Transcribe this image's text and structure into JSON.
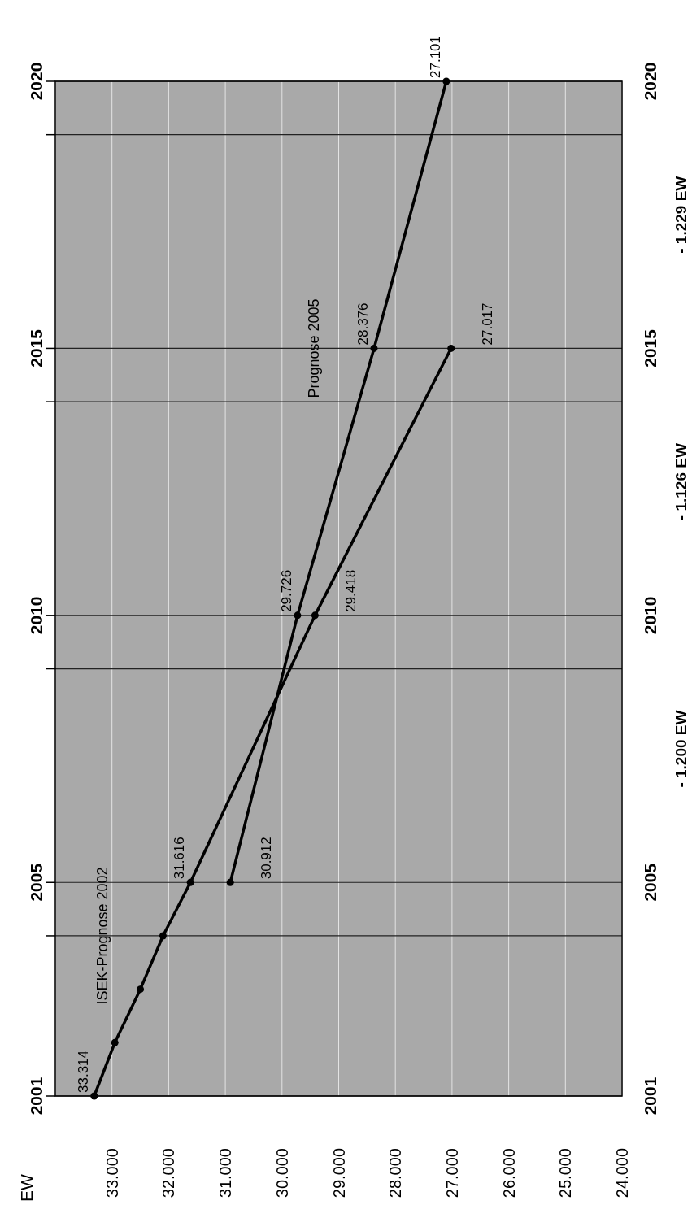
{
  "chart_data": {
    "type": "line",
    "xlim": [
      34,
      24
    ],
    "xticks": [
      {
        "value": 34,
        "label": null
      },
      {
        "value": 33,
        "label": "33.000"
      },
      {
        "value": 32,
        "label": "32.000"
      },
      {
        "value": 31,
        "label": "31.000"
      },
      {
        "value": 30,
        "label": "30.000"
      },
      {
        "value": 29,
        "label": "29.000"
      },
      {
        "value": 28,
        "label": "28.000"
      },
      {
        "value": 27,
        "label": "27.000"
      },
      {
        "value": 26,
        "label": "26.000"
      },
      {
        "value": 25,
        "label": "25.000"
      },
      {
        "value": 24,
        "label": "24.000"
      }
    ],
    "ylim": [
      2001,
      2020
    ],
    "yticks": [
      2001,
      {
        "value": 2004,
        "label": null
      },
      2005,
      {
        "value": 2009,
        "label": null
      },
      2010,
      {
        "value": 2014,
        "label": null
      },
      2015,
      {
        "value": 2019,
        "label": null
      },
      2020
    ],
    "y2lim": [
      2001,
      2020
    ],
    "y2ticks": [
      2001,
      2005,
      2010,
      2015,
      2020
    ],
    "grid": true,
    "marker": "circle",
    "line_style": "solid",
    "series": [
      {
        "name": "ISEK-Prognose 2002",
        "color": "#000000",
        "x": [
          33.314,
          32.95,
          32.5,
          32.1,
          31.616,
          29.418,
          27.017
        ],
        "values": [
          2001,
          2002,
          2003,
          2004,
          2005,
          2010,
          2015
        ]
      },
      {
        "name": "Prognose 2005",
        "color": "#000000",
        "x": [
          30.912,
          29.726,
          28.376,
          27.101
        ],
        "values": [
          2005,
          2010,
          2015,
          2020
        ]
      }
    ],
    "annotations": [
      {
        "text": "33.314",
        "x": 33.314,
        "y": 2001
      },
      {
        "text": "31.616",
        "x": 31.616,
        "y": 2005
      },
      {
        "text": "29.418",
        "x": 29.418,
        "y": 2010
      },
      {
        "text": "27.017",
        "x": 27.017,
        "y": 2015
      },
      {
        "text": "30.912",
        "x": 30.912,
        "y": 2005
      },
      {
        "text": "29.726",
        "x": 29.726,
        "y": 2010
      },
      {
        "text": "28.376",
        "x": 28.376,
        "y": 2015
      },
      {
        "text": "27.101",
        "x": 27.101,
        "y": 2020
      },
      "EW",
      "- 1.200 EW",
      "- 1.126 EW",
      "- 1.229 EW"
    ]
  }
}
